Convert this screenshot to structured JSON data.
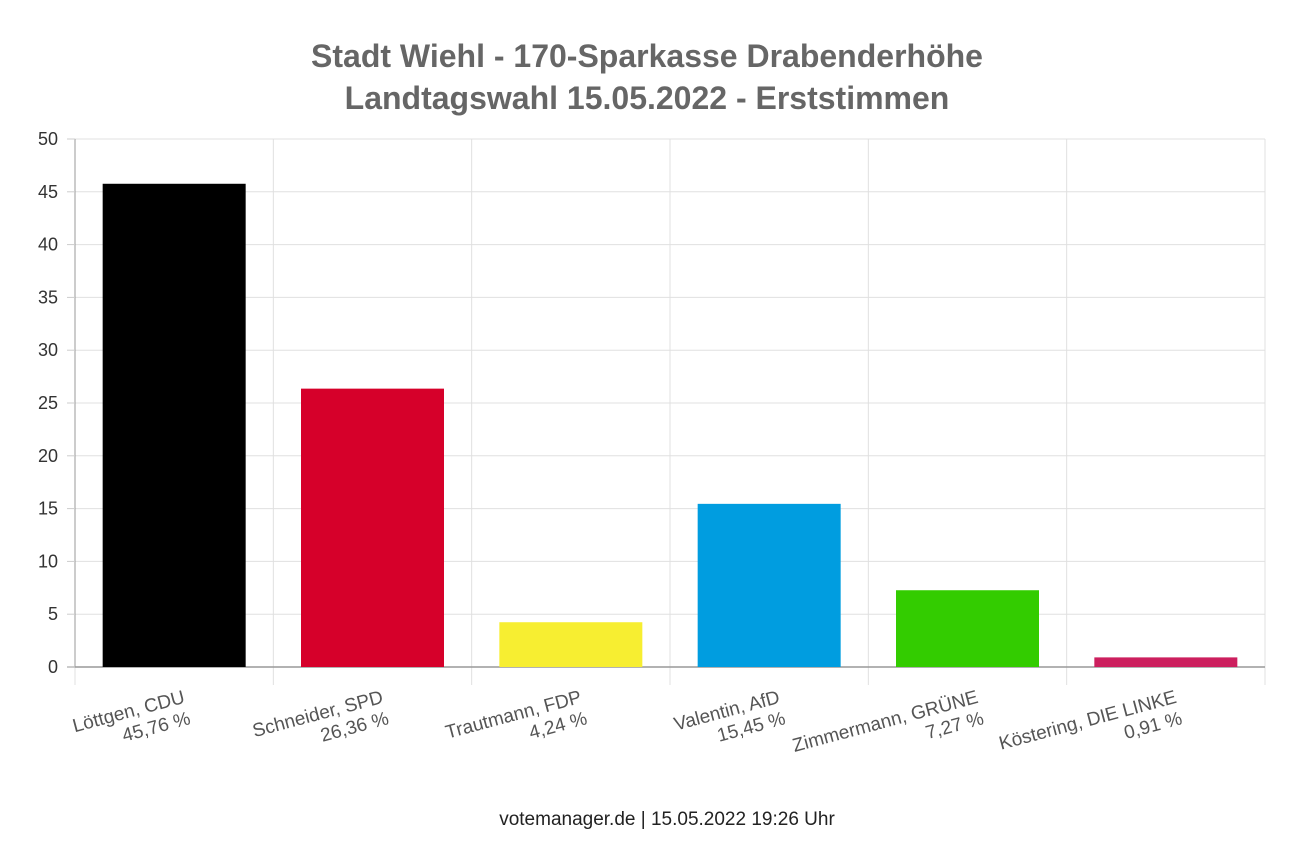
{
  "chart_data": {
    "type": "bar",
    "title": [
      "Stadt Wiehl - 170-Sparkasse Drabenderhöhe",
      "Landtagswahl 15.05.2022  - Erststimmen"
    ],
    "categories": [
      [
        "Löttgen, CDU",
        "45,76 %"
      ],
      [
        "Schneider, SPD",
        "26,36 %"
      ],
      [
        "Trautmann, FDP",
        "4,24 %"
      ],
      [
        "Valentin, AfD",
        "15,45 %"
      ],
      [
        "Zimmermann, GRÜNE",
        "7,27 %"
      ],
      [
        "Köstering, DIE LINKE",
        "0,91 %"
      ]
    ],
    "values": [
      45.76,
      26.36,
      4.24,
      15.45,
      7.27,
      0.91
    ],
    "colors": [
      "#000000",
      "#d6002a",
      "#f7ee31",
      "#009de0",
      "#33cc00",
      "#cc1f5e"
    ],
    "ylim": [
      0,
      50
    ],
    "yticks": [
      "0",
      "5",
      "10",
      "15",
      "20",
      "25",
      "30",
      "35",
      "40",
      "45",
      "50"
    ],
    "xlabel": "",
    "ylabel": "",
    "grid": true,
    "footer": "votemanager.de | 15.05.2022 19:26 Uhr"
  }
}
